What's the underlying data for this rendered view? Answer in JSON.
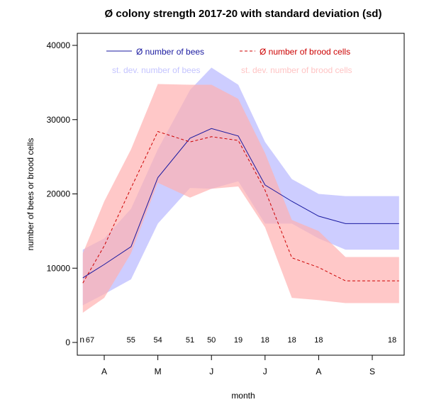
{
  "chart_data": {
    "type": "area",
    "title": "Ø colony strength 2017-20 with standard deviation (sd)",
    "xlabel": "month",
    "ylabel": "number of bees or brood cells",
    "ylim": [
      0,
      40000
    ],
    "xlim": [
      4.1,
      10.1
    ],
    "yticks": [
      0,
      10000,
      20000,
      30000,
      40000
    ],
    "yticklabels": [
      "0",
      "10000",
      "20000",
      "30000",
      "40000"
    ],
    "xticks": [
      4.5,
      5.5,
      6.5,
      7.5,
      8.5,
      9.5
    ],
    "xticklabels": [
      "A",
      "M",
      "J",
      "J",
      "A",
      "S"
    ],
    "x": [
      4.1,
      4.5,
      5.0,
      5.5,
      6.1,
      6.5,
      7.0,
      7.5,
      8.0,
      8.5,
      9.0,
      10.0
    ],
    "series": [
      {
        "name": "Ø number of bees",
        "kind": "line",
        "color": "#1a1aa0",
        "dash": false,
        "values": [
          8700,
          10500,
          12900,
          22200,
          27500,
          28800,
          27800,
          21200,
          19000,
          17000,
          16000,
          16000
        ],
        "sd_upper": [
          12500,
          14000,
          18000,
          26000,
          34000,
          37000,
          34700,
          27000,
          22000,
          20000,
          19700,
          19700
        ],
        "sd_lower": [
          5000,
          6500,
          8500,
          16000,
          20800,
          20700,
          21700,
          16000,
          16000,
          14000,
          12500,
          12500
        ]
      },
      {
        "name": "Ø number of brood cells",
        "kind": "line",
        "color": "#cc0000",
        "dash": true,
        "values": [
          8000,
          13000,
          20800,
          28400,
          27000,
          27700,
          27200,
          20500,
          11400,
          10100,
          8300,
          8300
        ],
        "sd_upper": [
          12000,
          19000,
          26000,
          34800,
          34700,
          34700,
          32800,
          25500,
          16500,
          15000,
          11500,
          11500
        ],
        "sd_lower": [
          4000,
          6000,
          12000,
          21500,
          19500,
          20700,
          21000,
          15500,
          6000,
          5700,
          5300,
          5300
        ]
      }
    ],
    "sd_legend": [
      {
        "name": "st. dev. number of bees",
        "color": "#c4c4ff"
      },
      {
        "name": "st. dev. number of brood cells",
        "color": "#ffc4c4"
      }
    ],
    "n_label": "n",
    "n_values": [
      {
        "x": 4.1,
        "label": "67"
      },
      {
        "x": 5.0,
        "label": "55"
      },
      {
        "x": 5.5,
        "label": "54"
      },
      {
        "x": 6.1,
        "label": "51"
      },
      {
        "x": 6.5,
        "label": "50"
      },
      {
        "x": 7.0,
        "label": "19"
      },
      {
        "x": 7.5,
        "label": "18"
      },
      {
        "x": 8.0,
        "label": "18"
      },
      {
        "x": 8.5,
        "label": "18"
      },
      {
        "x": 10.0,
        "label": "18"
      }
    ],
    "colors": {
      "bees_band": "#c4c4ff",
      "brood_band": "#ffb0b0",
      "bees_line": "#1a1aa0",
      "brood_line": "#cc0000"
    },
    "legend_placement": "top",
    "grid": false
  }
}
